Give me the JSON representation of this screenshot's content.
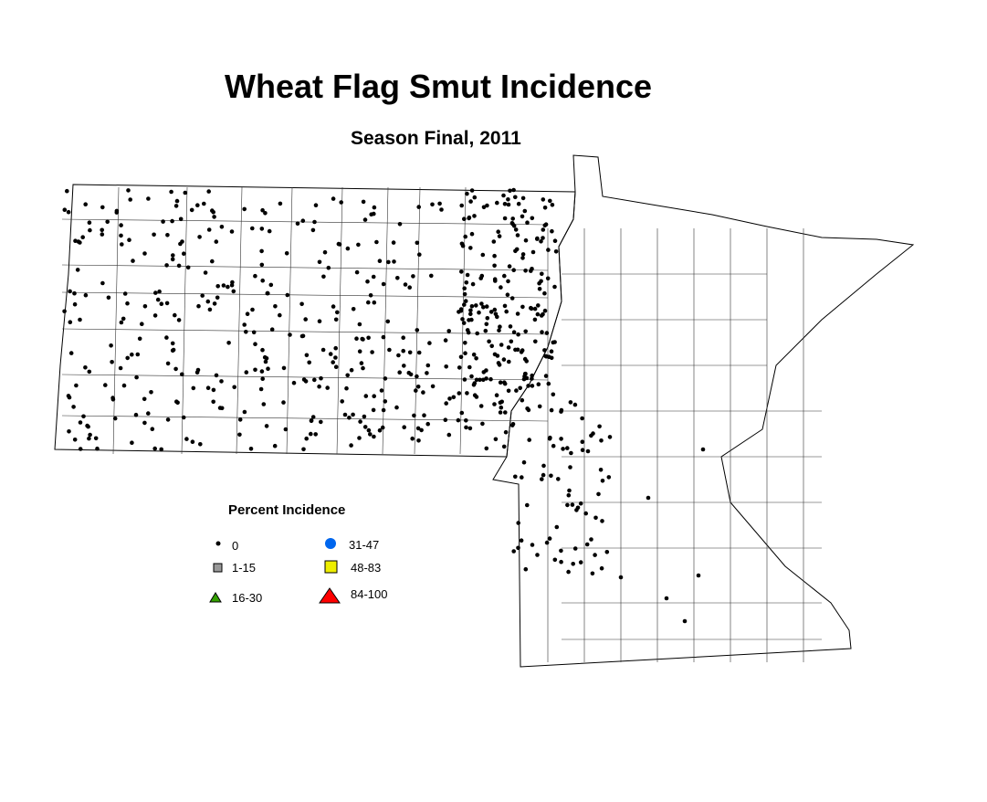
{
  "title": "Wheat Flag Smut Incidence",
  "subtitle": "Season Final, 2011",
  "legend": {
    "title": "Percent Incidence",
    "items": [
      {
        "label": "0",
        "symbol": "small-dot",
        "color": "#000000"
      },
      {
        "label": "1-15",
        "symbol": "square",
        "color": "#999999"
      },
      {
        "label": "16-30",
        "symbol": "triangle",
        "color": "#33a000"
      },
      {
        "label": "31-47",
        "symbol": "circle",
        "color": "#0066ee"
      },
      {
        "label": "48-83",
        "symbol": "square",
        "color": "#eeee00"
      },
      {
        "label": "84-100",
        "symbol": "triangle",
        "color": "#ff0000"
      }
    ]
  },
  "observed_category": "0"
}
